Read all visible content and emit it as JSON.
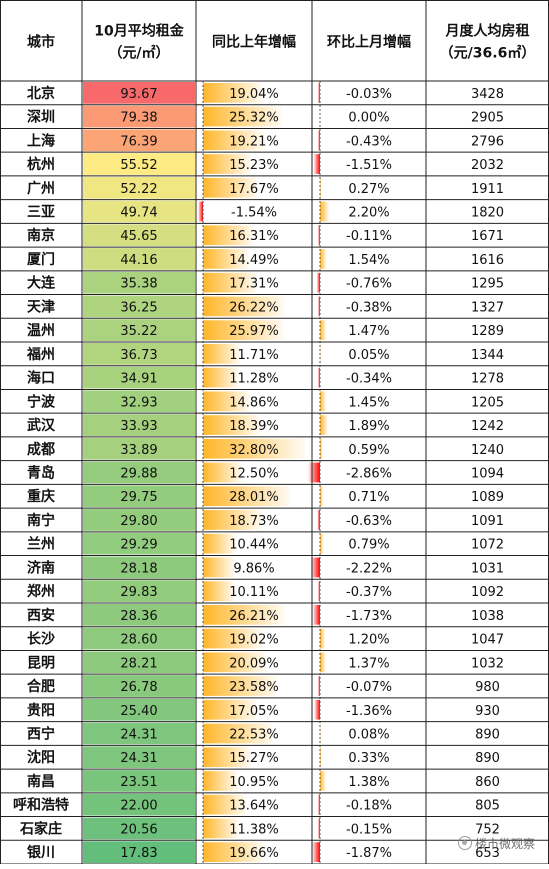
{
  "chart_data": {
    "type": "table",
    "headers": [
      {
        "lines": [
          "城市"
        ]
      },
      {
        "lines": [
          "10月平均租金",
          "（元/㎡）"
        ]
      },
      {
        "lines": [
          "同比上年增幅"
        ]
      },
      {
        "lines": [
          "环比上月增幅"
        ]
      },
      {
        "lines": [
          "月度人均房租",
          "（元/36.6㎡）"
        ]
      }
    ],
    "rows": [
      {
        "city": "北京",
        "rent": 93.67,
        "yoy": 19.04,
        "mom": -0.03,
        "per_capita": 3428
      },
      {
        "city": "深圳",
        "rent": 79.38,
        "yoy": 25.32,
        "mom": 0.0,
        "per_capita": 2905
      },
      {
        "city": "上海",
        "rent": 76.39,
        "yoy": 19.21,
        "mom": -0.43,
        "per_capita": 2796
      },
      {
        "city": "杭州",
        "rent": 55.52,
        "yoy": 15.23,
        "mom": -1.51,
        "per_capita": 2032
      },
      {
        "city": "广州",
        "rent": 52.22,
        "yoy": 17.67,
        "mom": 0.27,
        "per_capita": 1911
      },
      {
        "city": "三亚",
        "rent": 49.74,
        "yoy": -1.54,
        "mom": 2.2,
        "per_capita": 1820
      },
      {
        "city": "南京",
        "rent": 45.65,
        "yoy": 16.31,
        "mom": -0.11,
        "per_capita": 1671
      },
      {
        "city": "厦门",
        "rent": 44.16,
        "yoy": 14.49,
        "mom": 1.54,
        "per_capita": 1616
      },
      {
        "city": "大连",
        "rent": 35.38,
        "yoy": 17.31,
        "mom": -0.76,
        "per_capita": 1295
      },
      {
        "city": "天津",
        "rent": 36.25,
        "yoy": 26.22,
        "mom": -0.38,
        "per_capita": 1327
      },
      {
        "city": "温州",
        "rent": 35.22,
        "yoy": 25.97,
        "mom": 1.47,
        "per_capita": 1289
      },
      {
        "city": "福州",
        "rent": 36.73,
        "yoy": 11.71,
        "mom": 0.05,
        "per_capita": 1344
      },
      {
        "city": "海口",
        "rent": 34.91,
        "yoy": 11.28,
        "mom": -0.34,
        "per_capita": 1278
      },
      {
        "city": "宁波",
        "rent": 32.93,
        "yoy": 14.86,
        "mom": 1.45,
        "per_capita": 1205
      },
      {
        "city": "武汉",
        "rent": 33.93,
        "yoy": 18.39,
        "mom": 1.89,
        "per_capita": 1242
      },
      {
        "city": "成都",
        "rent": 33.89,
        "yoy": 32.8,
        "mom": 0.59,
        "per_capita": 1240
      },
      {
        "city": "青岛",
        "rent": 29.88,
        "yoy": 12.5,
        "mom": -2.86,
        "per_capita": 1094
      },
      {
        "city": "重庆",
        "rent": 29.75,
        "yoy": 28.01,
        "mom": 0.71,
        "per_capita": 1089
      },
      {
        "city": "南宁",
        "rent": 29.8,
        "yoy": 18.73,
        "mom": -0.63,
        "per_capita": 1091
      },
      {
        "city": "兰州",
        "rent": 29.29,
        "yoy": 10.44,
        "mom": 0.79,
        "per_capita": 1072
      },
      {
        "city": "济南",
        "rent": 28.18,
        "yoy": 9.86,
        "mom": -2.22,
        "per_capita": 1031
      },
      {
        "city": "郑州",
        "rent": 29.83,
        "yoy": 10.11,
        "mom": -0.37,
        "per_capita": 1092
      },
      {
        "city": "西安",
        "rent": 28.36,
        "yoy": 26.21,
        "mom": -1.73,
        "per_capita": 1038
      },
      {
        "city": "长沙",
        "rent": 28.6,
        "yoy": 19.02,
        "mom": 1.2,
        "per_capita": 1047
      },
      {
        "city": "昆明",
        "rent": 28.21,
        "yoy": 20.09,
        "mom": 1.37,
        "per_capita": 1032
      },
      {
        "city": "合肥",
        "rent": 26.78,
        "yoy": 23.58,
        "mom": -0.07,
        "per_capita": 980
      },
      {
        "city": "贵阳",
        "rent": 25.4,
        "yoy": 17.05,
        "mom": -1.36,
        "per_capita": 930
      },
      {
        "city": "西宁",
        "rent": 24.31,
        "yoy": 22.53,
        "mom": 0.08,
        "per_capita": 890
      },
      {
        "city": "沈阳",
        "rent": 24.31,
        "yoy": 15.27,
        "mom": 0.33,
        "per_capita": 890
      },
      {
        "city": "南昌",
        "rent": 23.51,
        "yoy": 10.95,
        "mom": 1.38,
        "per_capita": 860
      },
      {
        "city": "呼和浩特",
        "rent": 22.0,
        "yoy": 13.64,
        "mom": -0.18,
        "per_capita": 805
      },
      {
        "city": "石家庄",
        "rent": 20.56,
        "yoy": 11.38,
        "mom": -0.15,
        "per_capita": 752
      },
      {
        "city": "银川",
        "rent": 17.83,
        "yoy": 19.66,
        "mom": -1.87,
        "per_capita": 653
      }
    ],
    "rent_color_scale": {
      "high": "#f8696b",
      "mid": "#ffeb84",
      "low": "#63be7b"
    },
    "bar_colors": {
      "positive": "#ffb628",
      "negative": "#ff0000"
    },
    "grid": true
  },
  "watermark": {
    "text": "楼市微观察",
    "icon": "wechat-icon"
  }
}
